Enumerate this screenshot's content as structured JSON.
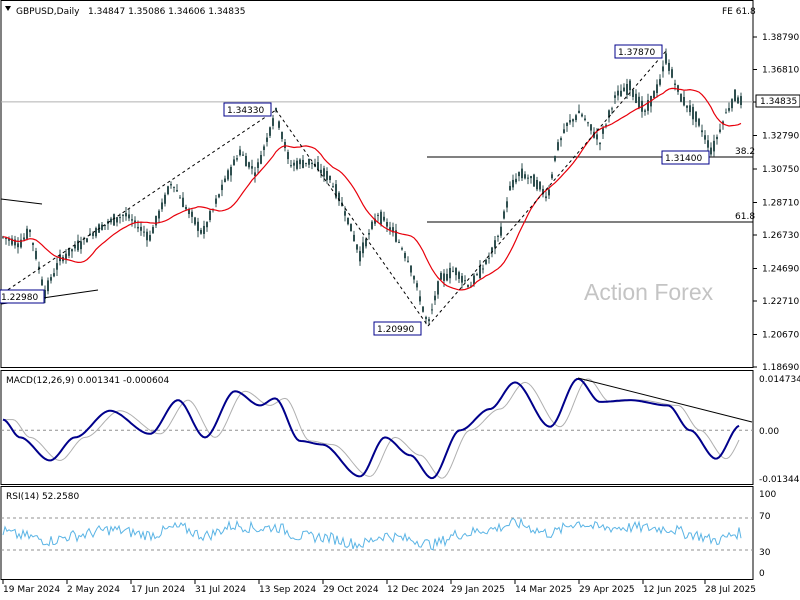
{
  "header": {
    "symbol": "GBPUSD,Daily",
    "ohlc": "1.34847 1.35086 1.34606 1.34835",
    "fe_label": "FE 61.8"
  },
  "watermark": "Action Forex",
  "price_panel": {
    "y_ticks": [
      "1.38790",
      "1.36810",
      "1.34830",
      "1.32790",
      "1.30750",
      "1.28710",
      "1.26730",
      "1.24690",
      "1.22710",
      "1.20670",
      "1.18690"
    ],
    "current_price": "1.34835",
    "annotations": {
      "high_2024": "1.34330",
      "low_2024_apr": "1.22980",
      "low_2025_jan": "1.20990",
      "high_2025": "1.37870",
      "low_2025_aug": "1.31400"
    },
    "fib_labels": {
      "f382": "38.2",
      "f618": "61.8"
    }
  },
  "macd_panel": {
    "title": "MACD(12,26,9) 0.001341 -0.000604",
    "ticks": [
      "0.014734",
      "0.00",
      "-0.013442"
    ]
  },
  "rsi_panel": {
    "title": "RSI(14) 52.2580",
    "ticks": [
      "100",
      "70",
      "30",
      "0"
    ]
  },
  "x_labels": [
    "19 Mar 2024",
    "2 May 2024",
    "17 Jun 2024",
    "31 Jul 2024",
    "13 Sep 2024",
    "29 Oct 2024",
    "12 Dec 2024",
    "29 Jan 2025",
    "14 Mar 2025",
    "29 Apr 2025",
    "12 Jun 2025",
    "28 Jul 2025"
  ],
  "colors": {
    "candles": "#2f4f4f",
    "ma_line": "#e8000b",
    "macd_line": "#00008b",
    "signal_line": "#b0b0b0",
    "rsi_line": "#5ab4e5",
    "border": "#000000"
  },
  "chart_data": [
    {
      "type": "line",
      "title": "GBPUSD,Daily",
      "subtitle": "1.34847 1.35086 1.34606 1.34835",
      "x": [
        "19 Mar 2024",
        "2 May 2024",
        "17 Jun 2024",
        "31 Jul 2024",
        "13 Sep 2024",
        "29 Oct 2024",
        "12 Dec 2024",
        "29 Jan 2025",
        "14 Mar 2025",
        "29 Apr 2025",
        "12 Jun 2025",
        "28 Jul 2025"
      ],
      "series": [
        {
          "values": [
            1.267,
            1.258,
            1.268,
            1.283,
            1.314,
            1.296,
            1.268,
            1.236,
            1.288,
            1.335,
            1.362,
            1.334
          ]
        }
      ],
      "ylim": [
        1.1869,
        1.3879
      ],
      "horizontal_levels": {
        "38.2": 1.314,
        "61.8": 1.2752
      },
      "marked_points": [
        {
          "label": "1.22980",
          "x": "Apr 2024",
          "y": 1.2298
        },
        {
          "label": "1.34330",
          "x": "Sep 2024",
          "y": 1.3433
        },
        {
          "label": "1.20990",
          "x": "Jan 2025",
          "y": 1.2099
        },
        {
          "label": "1.37870",
          "x": "Jul 2025",
          "y": 1.3787
        },
        {
          "label": "1.31400",
          "x": "Aug 2025",
          "y": 1.314
        }
      ],
      "current_price": 1.34835,
      "grid": false
    },
    {
      "type": "line",
      "title": "MACD(12,26,9) 0.001341 -0.000604",
      "x": [
        "19 Mar 2024",
        "2 May 2024",
        "17 Jun 2024",
        "31 Jul 2024",
        "13 Sep 2024",
        "29 Oct 2024",
        "12 Dec 2024",
        "29 Jan 2025",
        "14 Mar 2025",
        "29 Apr 2025",
        "12 Jun 2025",
        "28 Jul 2025"
      ],
      "series": [
        {
          "values": [
            0.002,
            -0.0085,
            0.0035,
            0.0085,
            0.005,
            -0.0025,
            -0.009,
            -0.01,
            0.01,
            0.013,
            0.003,
            0.001341
          ]
        }
      ],
      "ylim": [
        -0.013442,
        0.014734
      ]
    },
    {
      "type": "line",
      "title": "RSI(14) 52.2580",
      "x": [
        "19 Mar 2024",
        "2 May 2024",
        "17 Jun 2024",
        "31 Jul 2024",
        "13 Sep 2024",
        "29 Oct 2024",
        "12 Dec 2024",
        "29 Jan 2025",
        "14 Mar 2025",
        "29 Apr 2025",
        "12 Jun 2025",
        "28 Jul 2025"
      ],
      "series": [
        {
          "values": [
            40,
            52,
            58,
            62,
            55,
            42,
            36,
            45,
            64,
            62,
            60,
            52.258
          ]
        }
      ],
      "ylim": [
        0,
        100
      ],
      "reference_levels": [
        70,
        30
      ]
    }
  ]
}
